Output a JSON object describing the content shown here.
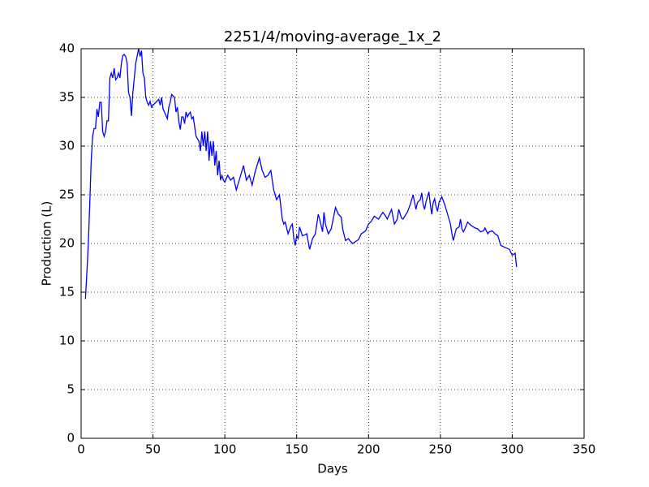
{
  "chart_data": {
    "type": "line",
    "title": "2251/4/moving-average_1x_2",
    "x_label": "Days",
    "y_label": "Production (L)",
    "x": [
      3,
      4,
      5,
      6,
      7,
      8,
      9,
      10,
      11,
      12,
      13,
      14,
      15,
      16,
      17,
      18,
      19,
      20,
      21,
      22,
      23,
      24,
      25,
      26,
      27,
      28,
      29,
      30,
      31,
      32,
      33,
      34,
      35,
      36,
      37,
      38,
      40,
      41,
      42,
      43,
      44,
      45,
      46,
      47,
      48,
      49,
      50,
      52,
      54,
      55,
      56,
      57,
      58,
      60,
      61,
      62,
      63,
      65,
      66,
      67,
      68,
      69,
      70,
      71,
      72,
      73,
      74,
      75,
      76,
      77,
      78,
      80,
      82,
      83,
      84,
      85,
      86,
      87,
      88,
      89,
      90,
      91,
      92,
      93,
      94,
      95,
      96,
      97,
      98,
      99,
      100,
      102,
      104,
      106,
      108,
      110,
      113,
      115,
      117,
      119,
      121,
      124,
      126,
      128,
      130,
      132,
      134,
      136,
      138,
      140,
      141,
      142,
      144,
      146,
      147,
      148,
      149,
      150,
      151,
      152,
      154,
      156,
      157,
      159,
      161,
      163,
      165,
      166,
      168,
      169,
      170,
      172,
      174,
      177,
      179,
      181,
      182,
      184,
      186,
      187,
      189,
      191,
      193,
      195,
      198,
      200,
      202,
      204,
      206,
      207,
      209,
      210,
      212,
      213,
      216,
      218,
      220,
      221,
      223,
      224,
      226,
      227,
      229,
      231,
      233,
      234,
      236,
      237,
      238,
      239,
      240,
      242,
      243,
      244,
      245,
      246,
      247,
      248,
      249,
      251,
      253,
      254,
      256,
      257,
      258,
      259,
      261,
      263,
      264,
      265,
      266,
      267,
      269,
      271,
      272,
      274,
      276,
      278,
      280,
      281,
      283,
      284,
      286,
      288,
      290,
      292,
      295,
      298,
      300,
      302,
      303
    ],
    "series": [
      {
        "name": "Production",
        "color": "#0000ff",
        "values": [
          14.3,
          17,
          20,
          24,
          28.5,
          31,
          31.8,
          31.8,
          33.8,
          33,
          34.5,
          34.5,
          31.5,
          31,
          31.5,
          32.6,
          32.6,
          37,
          37.5,
          37,
          38,
          36.8,
          37,
          37.5,
          37,
          38.5,
          39.3,
          39.4,
          39.2,
          38.5,
          35.5,
          35,
          33.1,
          35.5,
          37,
          38.5,
          40,
          39.2,
          39.8,
          37.5,
          37,
          35,
          34.5,
          34.2,
          34.6,
          34,
          34.2,
          34.5,
          34.8,
          34.2,
          35,
          33.8,
          33.5,
          32.8,
          34,
          34.5,
          35.3,
          35,
          33.5,
          34,
          32.5,
          31.7,
          33,
          33,
          32.3,
          33.5,
          33,
          33.3,
          33.5,
          32.8,
          33,
          31,
          30.5,
          29.5,
          31.5,
          30,
          31.5,
          29.5,
          31.5,
          28.5,
          30.5,
          29,
          30.5,
          28,
          29.5,
          27,
          28.5,
          26.5,
          27,
          26.5,
          26.3,
          27,
          26.5,
          26.8,
          25.5,
          26.5,
          28,
          26.5,
          27,
          26,
          27.3,
          28.8,
          27.5,
          26.8,
          27,
          27.5,
          25.5,
          24.5,
          25,
          22.5,
          22,
          22.2,
          21,
          21.8,
          22,
          20.5,
          19.8,
          20.8,
          20.5,
          21.7,
          20.8,
          20.9,
          21,
          19.4,
          20.5,
          21,
          23,
          22.5,
          21.2,
          23.2,
          22,
          21,
          21.5,
          23.7,
          23,
          22.7,
          21.5,
          20.3,
          20.5,
          20.3,
          20,
          20.2,
          20.4,
          21,
          21.3,
          22,
          22.3,
          22.8,
          22.6,
          22.5,
          23,
          23.2,
          22.8,
          22.5,
          23.5,
          22,
          22.5,
          23.5,
          22.6,
          22.5,
          23,
          23.2,
          24,
          25,
          23.5,
          24.2,
          24.5,
          25.2,
          24,
          23.5,
          24.3,
          25.3,
          24,
          23,
          24.2,
          24.6,
          23.8,
          23.3,
          24.2,
          24.8,
          24,
          23.5,
          22.5,
          22,
          21,
          20.3,
          21.5,
          21.7,
          22.5,
          21.5,
          21.2,
          21.5,
          22.2,
          21.9,
          21.8,
          21.6,
          21.5,
          21.2,
          21.3,
          21.6,
          21,
          21.2,
          21.3,
          21,
          20.8,
          19.8,
          19.6,
          19.4,
          18.8,
          19,
          17.6
        ]
      }
    ],
    "xlim": [
      0,
      350
    ],
    "ylim": [
      0,
      40
    ],
    "xticks": [
      0,
      50,
      100,
      150,
      200,
      250,
      300,
      350
    ],
    "yticks": [
      0,
      5,
      10,
      15,
      20,
      25,
      30,
      35,
      40
    ],
    "grid": true
  }
}
